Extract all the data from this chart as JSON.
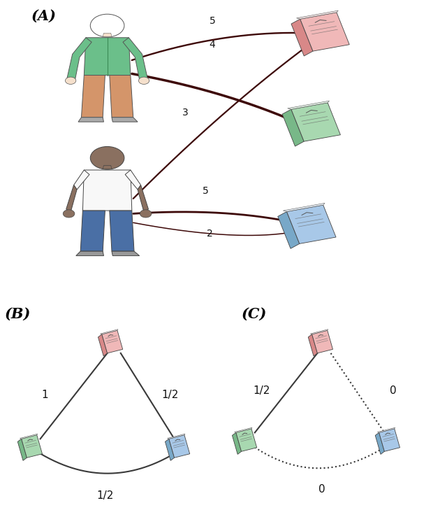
{
  "title_A": "(A)",
  "title_B": "(B)",
  "title_C": "(C)",
  "bg_color": "#ffffff",
  "line_color_dark": "#3d0808",
  "line_color_med": "#5a1010",
  "line_color_light": "#7a3030",
  "book_pink_cover": "#f0b8b8",
  "book_pink_spine": "#d88888",
  "book_pink_pages": "#f5e8e8",
  "book_green_cover": "#a8d8b0",
  "book_green_spine": "#78b888",
  "book_green_pages": "#e8f5ea",
  "book_blue_cover": "#a8c8e8",
  "book_blue_spine": "#78a8c8",
  "book_blue_pages": "#e8f0f8",
  "person1_skin": "#f5e0cc",
  "person1_shirt": "#6bbf8a",
  "person1_pants": "#d4956a",
  "person1_shoes": "#aaaaaa",
  "person2_skin": "#8a7060",
  "person2_shirt": "#f8f8f8",
  "person2_pants": "#4a6fa5",
  "person2_shoes": "#999999"
}
